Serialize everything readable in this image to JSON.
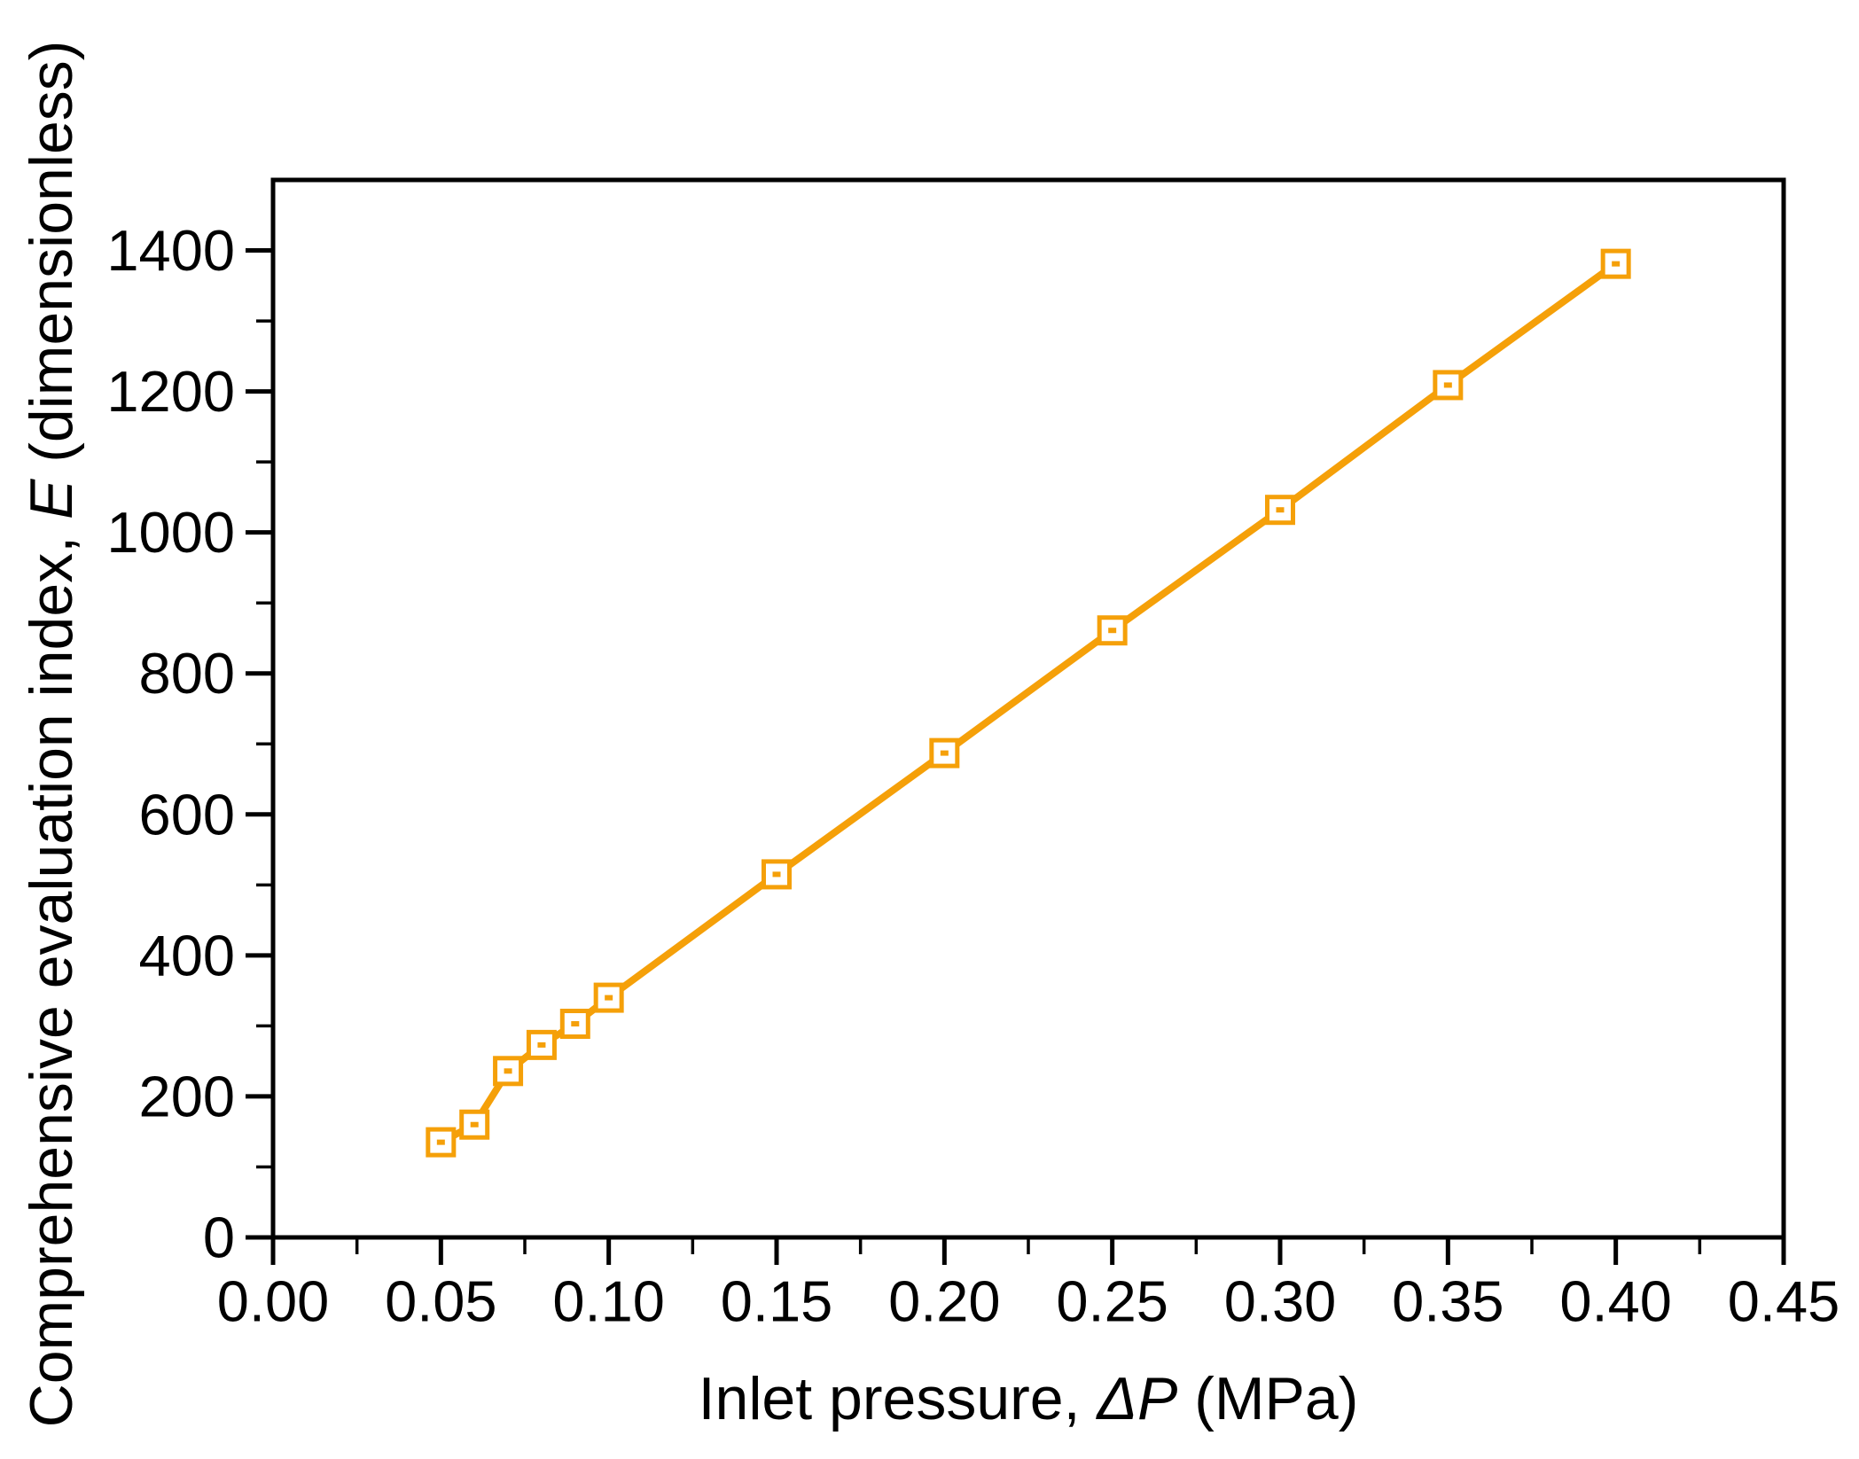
{
  "colors": {
    "background": "#ffffff",
    "axis": "#000000",
    "series": "#f5a009",
    "marker_fill": "#ffffff"
  },
  "chart_data": {
    "type": "line",
    "title": "",
    "xlabel": "Inlet pressure, ΔP (MPa)",
    "xlabel_segments": [
      {
        "text": "Inlet pressure, ",
        "italic": false
      },
      {
        "text": "ΔP",
        "italic": true
      },
      {
        "text": " (MPa)",
        "italic": false
      }
    ],
    "ylabel": "Comprehensive evaluation index, E (dimensionless)",
    "ylabel_segments": [
      {
        "text": "Comprehensive evaluation index, ",
        "italic": false
      },
      {
        "text": "E",
        "italic": true
      },
      {
        "text": " (dimensionless)",
        "italic": false
      }
    ],
    "xlim": [
      0,
      0.45
    ],
    "ylim": [
      0,
      1500
    ],
    "x_ticks": [
      0.0,
      0.05,
      0.1,
      0.15,
      0.2,
      0.25,
      0.3,
      0.35,
      0.4,
      0.45
    ],
    "x_tick_labels": [
      "0.00",
      "0.05",
      "0.10",
      "0.15",
      "0.20",
      "0.25",
      "0.30",
      "0.35",
      "0.40",
      "0.45"
    ],
    "y_ticks": [
      0,
      200,
      400,
      600,
      800,
      1000,
      1200,
      1400
    ],
    "y_tick_labels": [
      "0",
      "200",
      "400",
      "600",
      "800",
      "1000",
      "1200",
      "1400"
    ],
    "x_minor_step": 0.025,
    "y_minor_step": 100,
    "grid": false,
    "legend": "none",
    "series": [
      {
        "marker": "open-square-with-center-dot",
        "color": "#f5a009",
        "x": [
          0.05,
          0.06,
          0.07,
          0.08,
          0.09,
          0.1,
          0.15,
          0.2,
          0.25,
          0.3,
          0.35,
          0.4
        ],
        "y": [
          135,
          160,
          236,
          273,
          303,
          340,
          515,
          687,
          861,
          1032,
          1209,
          1381
        ]
      }
    ]
  }
}
